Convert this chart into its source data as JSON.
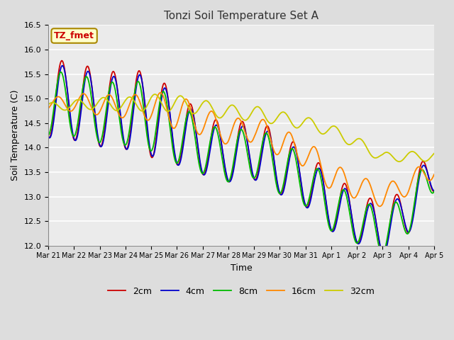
{
  "title": "Tonzi Soil Temperature Set A",
  "xlabel": "Time",
  "ylabel": "Soil Temperature (C)",
  "annotation": "TZ_fmet",
  "annotation_color": "#cc0000",
  "annotation_bg": "#ffffcc",
  "annotation_border": "#aa8800",
  "ylim": [
    12.0,
    16.5
  ],
  "yticks": [
    12.0,
    12.5,
    13.0,
    13.5,
    14.0,
    14.5,
    15.0,
    15.5,
    16.0,
    16.5
  ],
  "legend_labels": [
    "2cm",
    "4cm",
    "8cm",
    "16cm",
    "32cm"
  ],
  "line_colors": [
    "#cc0000",
    "#0000cc",
    "#00bb00",
    "#ff8800",
    "#cccc00"
  ],
  "figsize": [
    6.4,
    4.8
  ],
  "dpi": 100,
  "background_color": "#dddddd",
  "plot_bg": "#ebebeb",
  "grid_color": "#ffffff",
  "xtick_labels": [
    "Mar 21",
    "Mar 22",
    "Mar 23",
    "Mar 24",
    "Mar 25",
    "Mar 26",
    "Mar 27",
    "Mar 28",
    "Mar 29",
    "Mar 30",
    "Mar 31",
    "Apr 1",
    "Apr 2",
    "Apr 3",
    "Apr 4",
    "Apr 5"
  ]
}
